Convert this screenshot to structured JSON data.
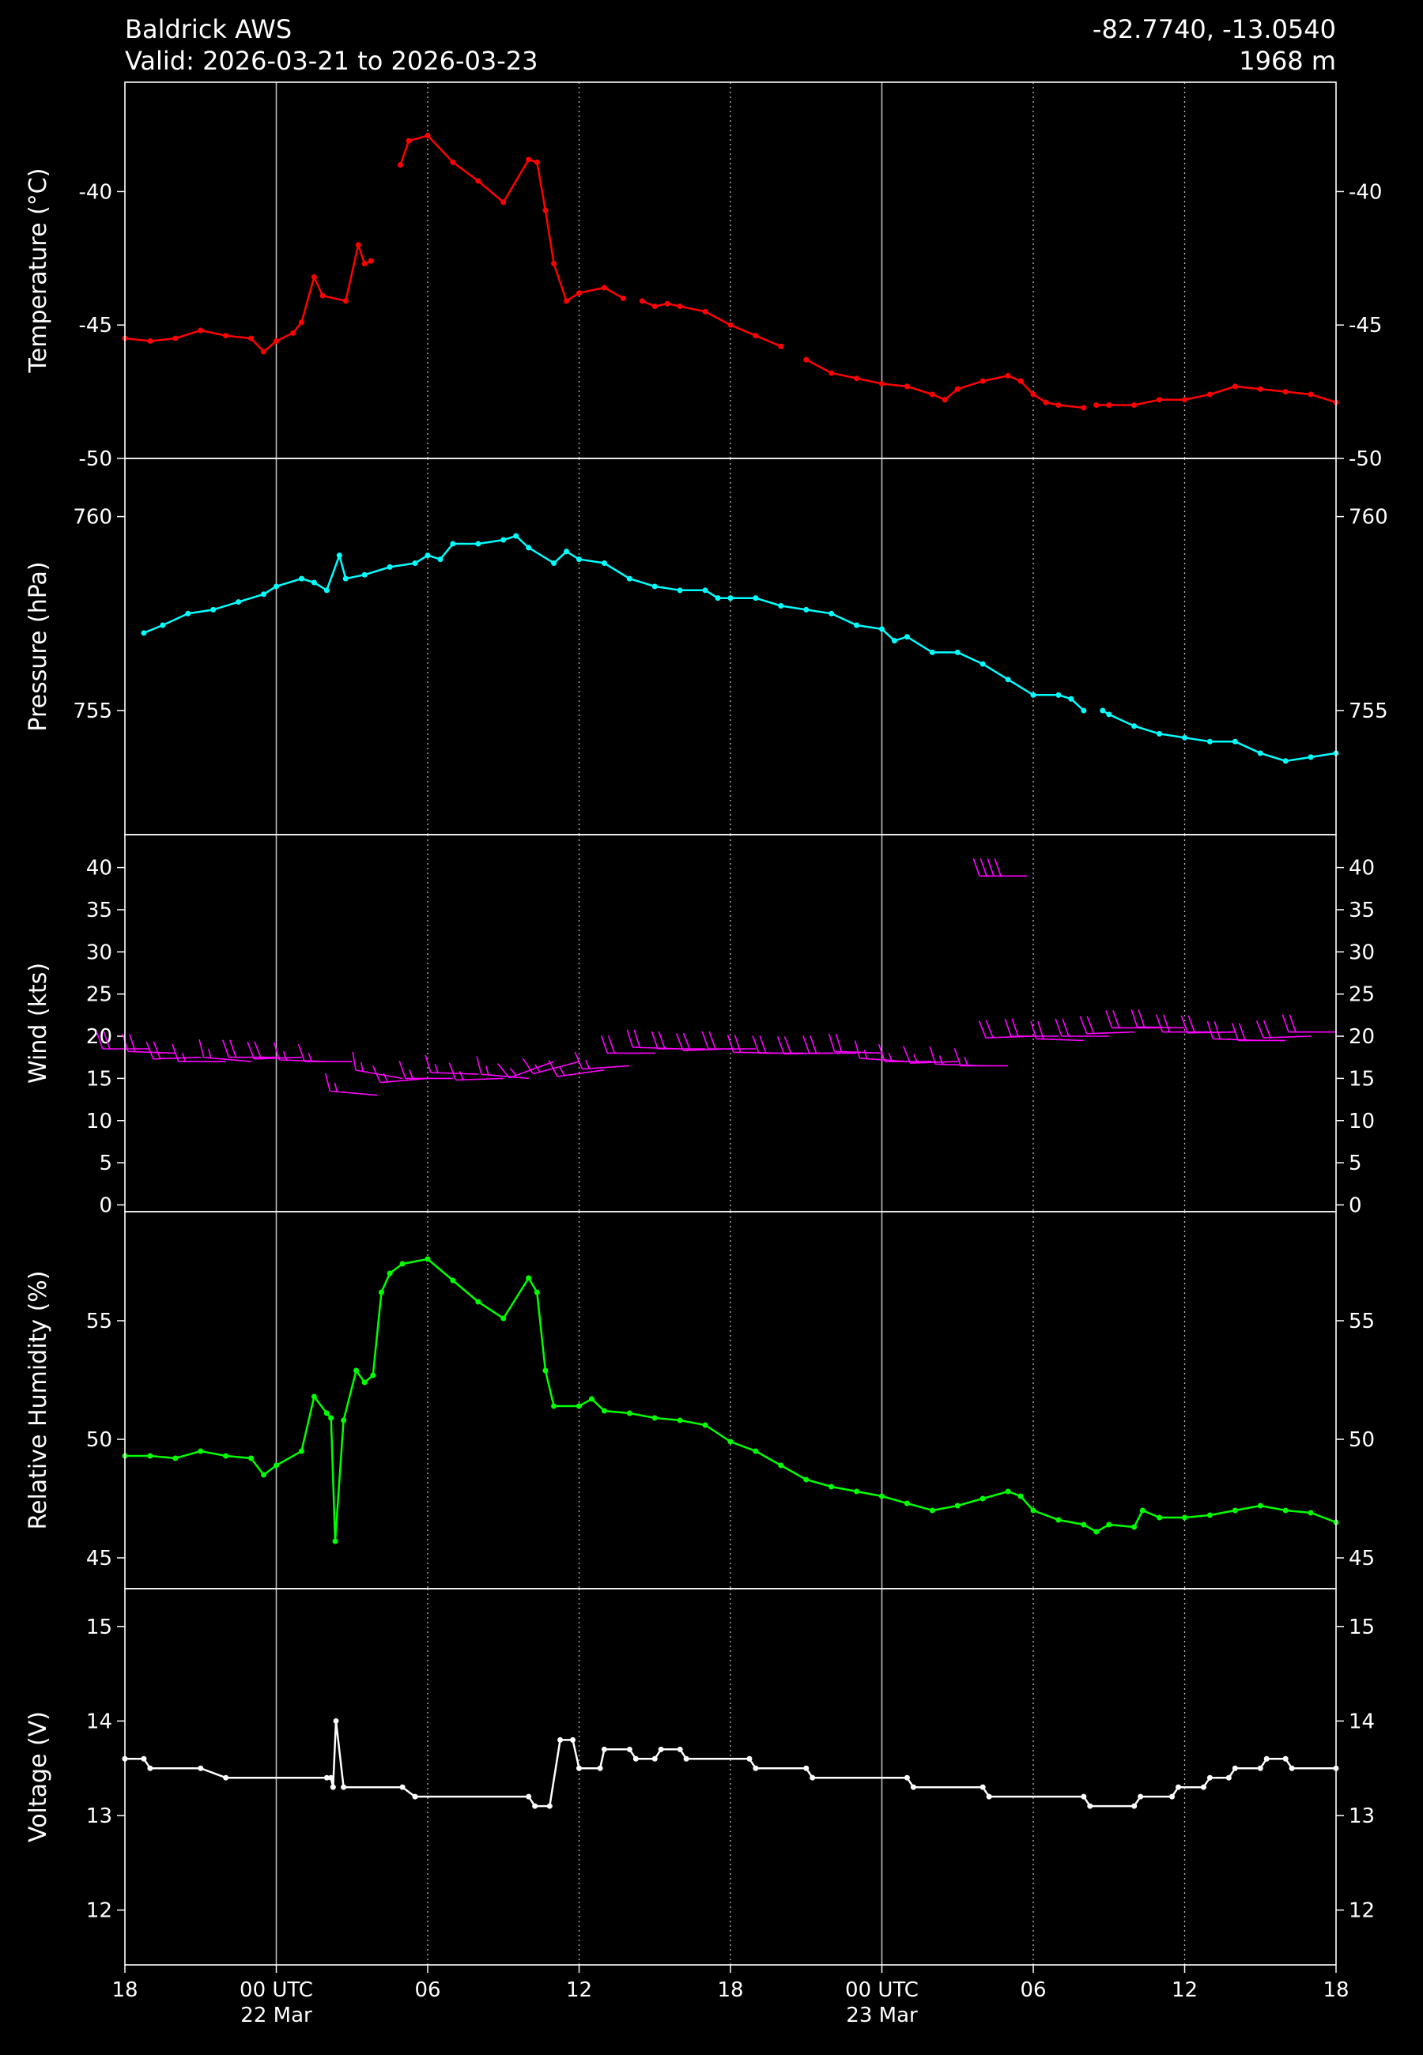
{
  "header": {
    "title": "Baldrick AWS",
    "valid": "Valid: 2026-03-21 to 2026-03-23",
    "location": "-82.7740, -13.0540",
    "elevation": "1968 m"
  },
  "chart_data": [
    {
      "type": "line",
      "ylabel": "Temperature (°C)",
      "color": "#ff0000",
      "x": [
        "2026-03-21T18:00",
        "2026-03-21T19:00",
        "2026-03-21T20:00",
        "2026-03-21T21:00",
        "2026-03-21T22:00",
        "2026-03-21T23:00",
        "2026-03-21T23:30",
        "2026-03-22T00:00",
        "2026-03-22T00:40",
        "2026-03-22T01:00",
        "2026-03-22T01:30",
        "2026-03-22T01:50",
        "2026-03-22T02:45",
        "2026-03-22T03:15",
        "2026-03-22T03:30",
        "2026-03-22T03:45",
        "2026-03-22T04:20",
        "2026-03-22T04:55",
        "2026-03-22T05:15",
        "2026-03-22T06:00",
        "2026-03-22T07:00",
        "2026-03-22T08:00",
        "2026-03-22T09:00",
        "2026-03-22T10:00",
        "2026-03-22T10:20",
        "2026-03-22T10:40",
        "2026-03-22T11:00",
        "2026-03-22T11:30",
        "2026-03-22T12:00",
        "2026-03-22T13:00",
        "2026-03-22T13:45",
        "2026-03-22T14:10",
        "2026-03-22T14:30",
        "2026-03-22T15:00",
        "2026-03-22T15:30",
        "2026-03-22T16:00",
        "2026-03-22T17:00",
        "2026-03-22T18:00",
        "2026-03-22T19:00",
        "2026-03-22T20:00",
        "2026-03-22T20:20",
        "2026-03-22T21:00",
        "2026-03-22T22:00",
        "2026-03-22T23:00",
        "2026-03-23T00:00",
        "2026-03-23T01:00",
        "2026-03-23T02:00",
        "2026-03-23T02:30",
        "2026-03-23T03:00",
        "2026-03-23T04:00",
        "2026-03-23T05:00",
        "2026-03-23T05:30",
        "2026-03-23T06:00",
        "2026-03-23T06:30",
        "2026-03-23T07:00",
        "2026-03-23T08:00",
        "2026-03-23T08:15",
        "2026-03-23T08:30",
        "2026-03-23T09:00",
        "2026-03-23T10:00",
        "2026-03-23T11:00",
        "2026-03-23T12:00",
        "2026-03-23T13:00",
        "2026-03-23T14:00",
        "2026-03-23T15:00",
        "2026-03-23T16:00",
        "2026-03-23T17:00",
        "2026-03-23T18:00"
      ],
      "values": [
        -45.5,
        -45.6,
        -45.5,
        -45.2,
        -45.4,
        -45.5,
        -46.0,
        -45.6,
        -45.3,
        -44.9,
        -43.2,
        -43.9,
        -44.1,
        -42.0,
        -42.7,
        -42.6,
        null,
        -39.0,
        -38.1,
        -37.9,
        -38.9,
        -39.6,
        -40.4,
        -38.8,
        -38.9,
        -40.7,
        -42.7,
        -44.1,
        -43.8,
        -43.6,
        -44.0,
        null,
        -44.1,
        -44.3,
        -44.2,
        -44.3,
        -44.5,
        -45.0,
        -45.4,
        -45.8,
        null,
        -46.3,
        -46.8,
        -47.0,
        -47.2,
        -47.3,
        -47.6,
        -47.8,
        -47.4,
        -47.1,
        -46.9,
        -47.1,
        -47.6,
        -47.9,
        -48.0,
        -48.1,
        null,
        -48.0,
        -48.0,
        -48.0,
        -47.8,
        -47.8,
        -47.6,
        -47.3,
        -47.4,
        -47.5,
        -47.6,
        -47.9
      ],
      "ylim": [
        -50,
        -35.9
      ],
      "yticks": [
        -50,
        -45,
        -40
      ]
    },
    {
      "type": "line",
      "ylabel": "Pressure (hPa)",
      "color": "#00ffff",
      "x": [
        "2026-03-21T18:45",
        "2026-03-21T19:30",
        "2026-03-21T20:30",
        "2026-03-21T21:30",
        "2026-03-21T22:30",
        "2026-03-21T23:30",
        "2026-03-22T00:00",
        "2026-03-22T01:00",
        "2026-03-22T01:30",
        "2026-03-22T02:00",
        "2026-03-22T02:30",
        "2026-03-22T02:45",
        "2026-03-22T03:30",
        "2026-03-22T04:30",
        "2026-03-22T05:30",
        "2026-03-22T06:00",
        "2026-03-22T06:30",
        "2026-03-22T07:00",
        "2026-03-22T08:00",
        "2026-03-22T09:00",
        "2026-03-22T09:30",
        "2026-03-22T10:00",
        "2026-03-22T11:00",
        "2026-03-22T11:30",
        "2026-03-22T12:00",
        "2026-03-22T13:00",
        "2026-03-22T14:00",
        "2026-03-22T15:00",
        "2026-03-22T16:00",
        "2026-03-22T17:00",
        "2026-03-22T17:30",
        "2026-03-22T18:00",
        "2026-03-22T19:00",
        "2026-03-22T20:00",
        "2026-03-22T21:00",
        "2026-03-22T22:00",
        "2026-03-22T23:00",
        "2026-03-23T00:00",
        "2026-03-23T00:30",
        "2026-03-23T01:00",
        "2026-03-23T02:00",
        "2026-03-23T03:00",
        "2026-03-23T04:00",
        "2026-03-23T05:00",
        "2026-03-23T06:00",
        "2026-03-23T07:00",
        "2026-03-23T07:30",
        "2026-03-23T08:00",
        "2026-03-23T08:15",
        "2026-03-23T08:45",
        "2026-03-23T09:00",
        "2026-03-23T10:00",
        "2026-03-23T11:00",
        "2026-03-23T12:00",
        "2026-03-23T13:00",
        "2026-03-23T14:00",
        "2026-03-23T15:00",
        "2026-03-23T16:00",
        "2026-03-23T17:00",
        "2026-03-23T18:00"
      ],
      "values": [
        757.0,
        757.2,
        757.5,
        757.6,
        757.8,
        758.0,
        758.2,
        758.4,
        758.3,
        758.1,
        759.0,
        758.4,
        758.5,
        758.7,
        758.8,
        759.0,
        758.9,
        759.3,
        759.3,
        759.4,
        759.5,
        759.2,
        758.8,
        759.1,
        758.9,
        758.8,
        758.4,
        758.2,
        758.1,
        758.1,
        757.9,
        757.9,
        757.9,
        757.7,
        757.6,
        757.5,
        757.2,
        757.1,
        756.8,
        756.9,
        756.5,
        756.5,
        756.2,
        755.8,
        755.4,
        755.4,
        755.3,
        755.0,
        null,
        755.0,
        754.9,
        754.6,
        754.4,
        754.3,
        754.2,
        754.2,
        753.9,
        753.7,
        753.8,
        753.9
      ],
      "ylim": [
        751.8,
        761.5
      ],
      "yticks": [
        755,
        760
      ]
    },
    {
      "type": "barbs",
      "ylabel": "Wind (kts)",
      "color": "#ff00ff",
      "x": [
        "2026-03-21T19:00",
        "2026-03-21T20:00",
        "2026-03-21T21:00",
        "2026-03-21T22:00",
        "2026-03-21T23:00",
        "2026-03-22T00:00",
        "2026-03-22T01:00",
        "2026-03-22T02:00",
        "2026-03-22T03:00",
        "2026-03-22T04:00",
        "2026-03-22T05:00",
        "2026-03-22T06:00",
        "2026-03-22T07:00",
        "2026-03-22T08:00",
        "2026-03-22T09:00",
        "2026-03-22T10:00",
        "2026-03-22T11:00",
        "2026-03-22T12:00",
        "2026-03-22T13:00",
        "2026-03-22T14:00",
        "2026-03-22T15:00",
        "2026-03-22T16:00",
        "2026-03-22T17:00",
        "2026-03-22T18:00",
        "2026-03-22T19:00",
        "2026-03-22T20:00",
        "2026-03-22T21:00",
        "2026-03-22T22:00",
        "2026-03-22T23:00",
        "2026-03-23T00:00",
        "2026-03-23T01:00",
        "2026-03-23T02:00",
        "2026-03-23T03:00",
        "2026-03-23T04:00",
        "2026-03-23T05:00",
        "2026-03-23T05:45",
        "2026-03-23T06:00",
        "2026-03-23T07:00",
        "2026-03-23T08:00",
        "2026-03-23T09:00",
        "2026-03-23T10:00",
        "2026-03-23T11:00",
        "2026-03-23T12:00",
        "2026-03-23T13:00",
        "2026-03-23T14:00",
        "2026-03-23T15:00",
        "2026-03-23T16:00",
        "2026-03-23T17:00",
        "2026-03-23T18:00"
      ],
      "values": [
        18.5,
        18,
        17.5,
        17,
        17,
        17.5,
        17.5,
        17,
        17,
        13,
        15,
        15,
        15,
        15.5,
        15,
        15,
        17,
        17,
        16,
        16.5,
        18,
        18.5,
        18.5,
        18.5,
        18.5,
        18,
        18,
        18,
        18,
        18,
        17,
        17,
        17,
        16.5,
        16.5,
        39,
        20,
        20,
        19.5,
        20,
        20.5,
        21,
        21,
        20.5,
        20.5,
        19.5,
        19.5,
        20,
        20.5
      ],
      "directions": [
        270,
        272,
        268,
        270,
        275,
        270,
        268,
        272,
        270,
        275,
        280,
        265,
        270,
        272,
        268,
        275,
        250,
        255,
        262,
        266,
        270,
        272,
        270,
        268,
        270,
        271,
        270,
        269,
        270,
        272,
        274,
        270,
        268,
        272,
        270,
        270,
        268,
        270,
        272,
        270,
        268,
        270,
        271,
        270,
        269,
        272,
        270,
        268,
        270
      ],
      "ylim": [
        -0.8,
        43.9
      ],
      "yticks": [
        0,
        5,
        10,
        15,
        20,
        25,
        30,
        35,
        40
      ]
    },
    {
      "type": "line",
      "ylabel": "Relative Humidity (%)",
      "color": "#00ff00",
      "x": [
        "2026-03-21T18:00",
        "2026-03-21T19:00",
        "2026-03-21T20:00",
        "2026-03-21T21:00",
        "2026-03-21T22:00",
        "2026-03-21T23:00",
        "2026-03-21T23:30",
        "2026-03-22T00:00",
        "2026-03-22T01:00",
        "2026-03-22T01:30",
        "2026-03-22T02:00",
        "2026-03-22T02:10",
        "2026-03-22T02:20",
        "2026-03-22T02:40",
        "2026-03-22T03:10",
        "2026-03-22T03:30",
        "2026-03-22T03:50",
        "2026-03-22T04:10",
        "2026-03-22T04:30",
        "2026-03-22T05:00",
        "2026-03-22T06:00",
        "2026-03-22T07:00",
        "2026-03-22T08:00",
        "2026-03-22T09:00",
        "2026-03-22T10:00",
        "2026-03-22T10:20",
        "2026-03-22T10:40",
        "2026-03-22T11:00",
        "2026-03-22T12:00",
        "2026-03-22T12:30",
        "2026-03-22T13:00",
        "2026-03-22T14:00",
        "2026-03-22T15:00",
        "2026-03-22T16:00",
        "2026-03-22T17:00",
        "2026-03-22T18:00",
        "2026-03-22T19:00",
        "2026-03-22T20:00",
        "2026-03-22T21:00",
        "2026-03-22T22:00",
        "2026-03-22T23:00",
        "2026-03-23T00:00",
        "2026-03-23T01:00",
        "2026-03-23T02:00",
        "2026-03-23T03:00",
        "2026-03-23T04:00",
        "2026-03-23T05:00",
        "2026-03-23T05:30",
        "2026-03-23T06:00",
        "2026-03-23T07:00",
        "2026-03-23T08:00",
        "2026-03-23T08:30",
        "2026-03-23T09:00",
        "2026-03-23T10:00",
        "2026-03-23T10:20",
        "2026-03-23T11:00",
        "2026-03-23T12:00",
        "2026-03-23T13:00",
        "2026-03-23T14:00",
        "2026-03-23T15:00",
        "2026-03-23T16:00",
        "2026-03-23T17:00",
        "2026-03-23T18:00"
      ],
      "values": [
        49.3,
        49.3,
        49.2,
        49.5,
        49.3,
        49.2,
        48.5,
        48.9,
        49.5,
        51.8,
        51.1,
        50.9,
        45.7,
        50.8,
        52.9,
        52.4,
        52.7,
        56.2,
        57.0,
        57.4,
        57.6,
        56.7,
        55.8,
        55.1,
        56.8,
        56.2,
        52.9,
        51.4,
        51.4,
        51.7,
        51.2,
        51.1,
        50.9,
        50.8,
        50.6,
        49.9,
        49.5,
        48.9,
        48.3,
        48.0,
        47.8,
        47.6,
        47.3,
        47.0,
        47.2,
        47.5,
        47.8,
        47.6,
        47.0,
        46.6,
        46.4,
        46.1,
        46.4,
        46.3,
        47.0,
        46.7,
        46.7,
        46.8,
        47.0,
        47.2,
        47.0,
        46.9,
        46.5
      ],
      "ylim": [
        43.7,
        59.6
      ],
      "yticks": [
        45,
        50,
        55
      ]
    },
    {
      "type": "line",
      "ylabel": "Voltage (V)",
      "color": "#ffffff",
      "x": [
        "2026-03-21T18:00",
        "2026-03-21T18:45",
        "2026-03-21T19:00",
        "2026-03-21T21:00",
        "2026-03-21T22:00",
        "2026-03-22T02:00",
        "2026-03-22T02:10",
        "2026-03-22T02:15",
        "2026-03-22T02:22",
        "2026-03-22T02:40",
        "2026-03-22T05:00",
        "2026-03-22T05:30",
        "2026-03-22T10:00",
        "2026-03-22T10:15",
        "2026-03-22T10:50",
        "2026-03-22T11:15",
        "2026-03-22T11:45",
        "2026-03-22T12:00",
        "2026-03-22T12:50",
        "2026-03-22T13:00",
        "2026-03-22T14:00",
        "2026-03-22T14:15",
        "2026-03-22T15:00",
        "2026-03-22T15:15",
        "2026-03-22T16:00",
        "2026-03-22T16:15",
        "2026-03-22T18:45",
        "2026-03-22T19:00",
        "2026-03-22T21:00",
        "2026-03-22T21:15",
        "2026-03-23T01:00",
        "2026-03-23T01:15",
        "2026-03-23T04:00",
        "2026-03-23T04:15",
        "2026-03-23T08:00",
        "2026-03-23T08:15",
        "2026-03-23T10:00",
        "2026-03-23T10:15",
        "2026-03-23T11:30",
        "2026-03-23T11:45",
        "2026-03-23T12:45",
        "2026-03-23T13:00",
        "2026-03-23T13:45",
        "2026-03-23T14:00",
        "2026-03-23T15:00",
        "2026-03-23T15:15",
        "2026-03-23T16:00",
        "2026-03-23T16:15",
        "2026-03-23T18:00"
      ],
      "values": [
        13.6,
        13.6,
        13.5,
        13.5,
        13.4,
        13.4,
        13.4,
        13.3,
        14.0,
        13.3,
        13.3,
        13.2,
        13.2,
        13.1,
        13.1,
        13.8,
        13.8,
        13.5,
        13.5,
        13.7,
        13.7,
        13.6,
        13.6,
        13.7,
        13.7,
        13.6,
        13.6,
        13.5,
        13.5,
        13.4,
        13.4,
        13.3,
        13.3,
        13.2,
        13.2,
        13.1,
        13.1,
        13.2,
        13.2,
        13.3,
        13.3,
        13.4,
        13.4,
        13.5,
        13.5,
        13.6,
        13.6,
        13.5,
        13.5
      ],
      "ylim": [
        11.42,
        15.4
      ],
      "yticks": [
        12,
        13,
        14,
        15
      ],
      "xlim": [
        "2026-03-21T18:00",
        "2026-03-23T18:00"
      ],
      "grid": true,
      "xticks": [
        {
          "value": "2026-03-21T18:00",
          "label": "18"
        },
        {
          "value": "2026-03-22T00:00",
          "label": "00 UTC\n22 Mar"
        },
        {
          "value": "2026-03-22T06:00",
          "label": "06"
        },
        {
          "value": "2026-03-22T12:00",
          "label": "12"
        },
        {
          "value": "2026-03-22T18:00",
          "label": "18"
        },
        {
          "value": "2026-03-23T00:00",
          "label": "00 UTC\n23 Mar"
        },
        {
          "value": "2026-03-23T06:00",
          "label": "06"
        },
        {
          "value": "2026-03-23T12:00",
          "label": "12"
        },
        {
          "value": "2026-03-23T18:00",
          "label": "18"
        }
      ]
    }
  ]
}
